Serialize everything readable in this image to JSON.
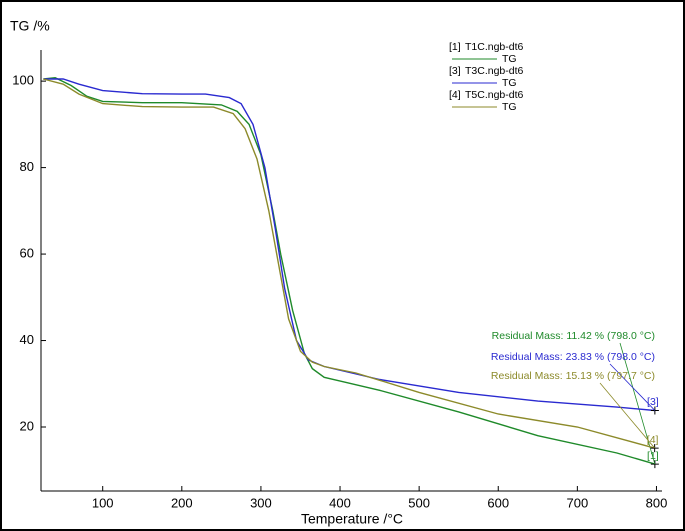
{
  "chart_data": {
    "type": "line",
    "y_label": "TG /%",
    "x_label": "Temperature /°C",
    "xlim": [
      22,
      807
    ],
    "ylim": [
      5.2,
      107.2
    ],
    "xticks": [
      100,
      200,
      300,
      400,
      500,
      600,
      700,
      800
    ],
    "yticks": [
      20,
      40,
      60,
      80,
      100
    ],
    "series": [
      {
        "name": "T1C.ngb-dt6",
        "id_label": "[1]",
        "signal": "TG",
        "color": "#1f8a2a",
        "x": [
          25,
          40,
          60,
          80,
          100,
          150,
          200,
          250,
          270,
          285,
          300,
          315,
          325,
          340,
          355,
          365,
          380,
          450,
          550,
          650,
          750,
          798
        ],
        "values": [
          100.5,
          100.8,
          99,
          96.5,
          95.3,
          95,
          95,
          94.5,
          93,
          90,
          83,
          70,
          60,
          47,
          37,
          33.5,
          31.5,
          28.5,
          23.5,
          18,
          14,
          11.42
        ],
        "annotation": "Residual Mass: 11.42 % (798.0 °C)"
      },
      {
        "name": "T3C.ngb-dt6",
        "id_label": "[3]",
        "signal": "TG",
        "color": "#2a2ad0",
        "x": [
          25,
          50,
          70,
          100,
          150,
          200,
          230,
          260,
          275,
          290,
          305,
          318,
          330,
          345,
          360,
          380,
          450,
          550,
          650,
          750,
          798
        ],
        "values": [
          100.5,
          100.5,
          99.3,
          97.8,
          97.1,
          97,
          97,
          96.2,
          94.8,
          90,
          80,
          66,
          52,
          40,
          35.5,
          34,
          31,
          28,
          26,
          24.6,
          23.83
        ],
        "annotation": "Residual Mass: 23.83 % (798.0 °C)"
      },
      {
        "name": "T5C.ngb-dt6",
        "id_label": "[4]",
        "signal": "TG",
        "color": "#8c8a2a",
        "x": [
          25,
          50,
          70,
          100,
          150,
          200,
          240,
          265,
          280,
          295,
          310,
          322,
          335,
          350,
          365,
          380,
          420,
          500,
          600,
          700,
          797.7
        ],
        "values": [
          100.5,
          99.3,
          97,
          94.8,
          94.1,
          94,
          94,
          92.5,
          89,
          82,
          70,
          58,
          45,
          37.5,
          35,
          34,
          32.5,
          28,
          23,
          20,
          15.13
        ],
        "annotation": "Residual Mass: 15.13 % (797.7 °C)"
      }
    ]
  }
}
